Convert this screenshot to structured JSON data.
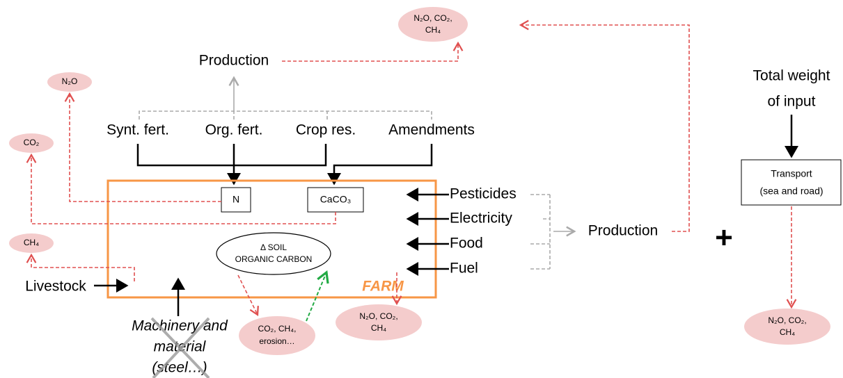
{
  "emissions": {
    "production_top": [
      "N₂O, CO₂,",
      "CH₄"
    ],
    "n2o": "N₂O",
    "co2": "CO₂",
    "ch4": "CH₄",
    "soil": [
      "CO₂, CH₄,",
      "erosion…"
    ],
    "farm": [
      "N₂O, CO₂,",
      "CH₄"
    ],
    "transport": [
      "N₂O, CO₂,",
      "CH₄"
    ]
  },
  "production_top": "Production",
  "fertilizers": [
    "Synt. fert.",
    "Org. fert.",
    "Crop res.",
    "Amendments"
  ],
  "boxes": {
    "n": "N",
    "caco3": "CaCO₃"
  },
  "soil_carbon": [
    "Δ SOIL",
    "ORGANIC CARBON"
  ],
  "farm": "FARM",
  "livestock": "Livestock",
  "machinery": [
    "Machinery and",
    "material",
    "(steel…)"
  ],
  "farm_inputs": [
    "Pesticides",
    "Electricity",
    "Food",
    "Fuel"
  ],
  "production_right": "Production",
  "plus": "+",
  "total_weight": [
    "Total weight",
    "of input"
  ],
  "transport": [
    "Transport",
    "(sea and road)"
  ]
}
